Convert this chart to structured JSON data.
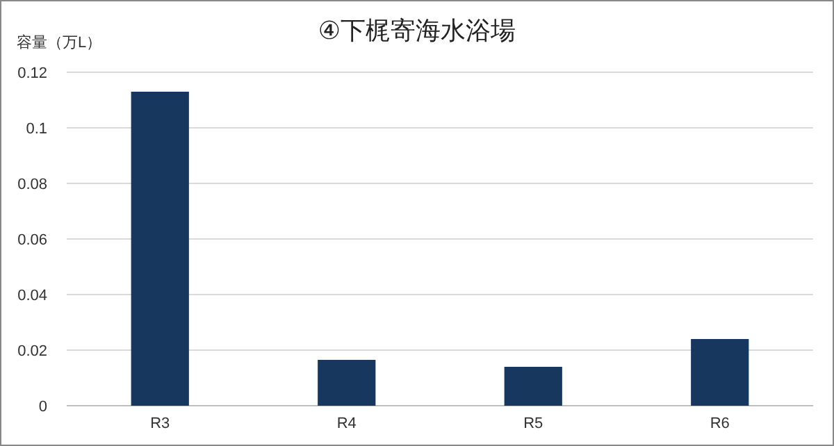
{
  "chart_data": {
    "type": "bar",
    "title": "④下梶寄海水浴場",
    "ylabel": "容量（万L）",
    "categories": [
      "R3",
      "R4",
      "R5",
      "R6"
    ],
    "values": [
      0.113,
      0.0165,
      0.014,
      0.024
    ],
    "color": "#17375e",
    "ylim": [
      0,
      0.12
    ],
    "yticks": [
      0,
      0.02,
      0.04,
      0.06,
      0.08,
      0.1,
      0.12
    ],
    "grid": "y"
  }
}
